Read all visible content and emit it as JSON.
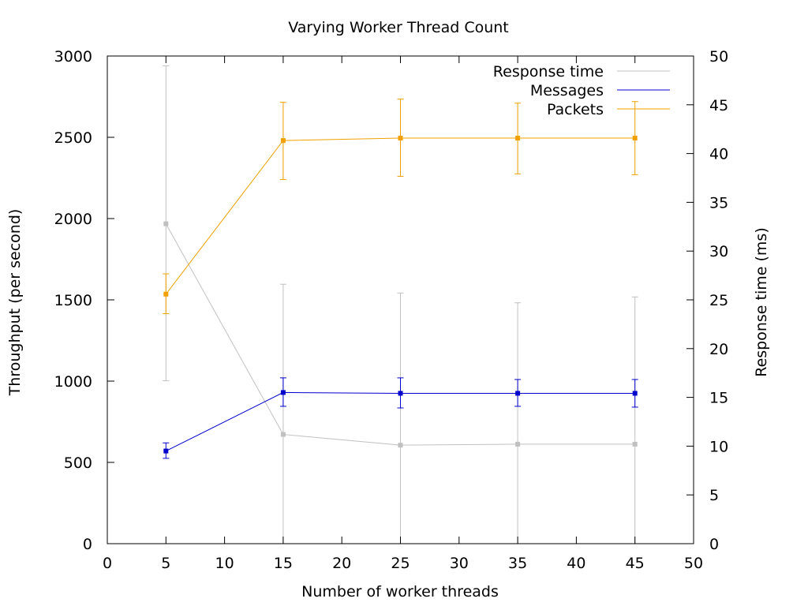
{
  "chart_data": {
    "type": "line",
    "title": "Varying Worker Thread Count",
    "xlabel": "Number of worker threads",
    "ylabel": "Throughput (per second)",
    "y2label": "Response time (ms)",
    "xlim": [
      0,
      50
    ],
    "ylim": [
      0,
      3000
    ],
    "y2lim": [
      0,
      50
    ],
    "xticks": [
      "0",
      "5",
      "10",
      "15",
      "20",
      "25",
      "30",
      "35",
      "40",
      "45",
      "50"
    ],
    "yticks": [
      "0",
      "500",
      "1000",
      "1500",
      "2000",
      "2500",
      "3000"
    ],
    "y2ticks": [
      "0",
      "5",
      "10",
      "15",
      "20",
      "25",
      "30",
      "35",
      "40",
      "45",
      "50"
    ],
    "grid": false,
    "legend_position": "top-right",
    "x": [
      5,
      15,
      25,
      35,
      45
    ],
    "series": [
      {
        "name": "Response time",
        "axis": "right",
        "color": "#c0c0c0",
        "values": [
          32.8,
          11.2,
          10.1,
          10.2,
          10.2
        ],
        "error_low": [
          16.7,
          0,
          0,
          0,
          0
        ],
        "error_high": [
          49.0,
          26.6,
          25.7,
          24.7,
          25.3
        ]
      },
      {
        "name": "Messages",
        "axis": "left",
        "color": "#0000cc",
        "values": [
          570,
          930,
          925,
          925,
          925
        ],
        "error_low": [
          525,
          845,
          835,
          845,
          840
        ],
        "error_high": [
          620,
          1020,
          1020,
          1010,
          1010
        ]
      },
      {
        "name": "Packets",
        "axis": "left",
        "color": "#f0a000",
        "values": [
          1535,
          2480,
          2495,
          2495,
          2495
        ],
        "error_low": [
          1415,
          2240,
          2260,
          2275,
          2270
        ],
        "error_high": [
          1660,
          2715,
          2735,
          2710,
          2720
        ]
      }
    ]
  }
}
